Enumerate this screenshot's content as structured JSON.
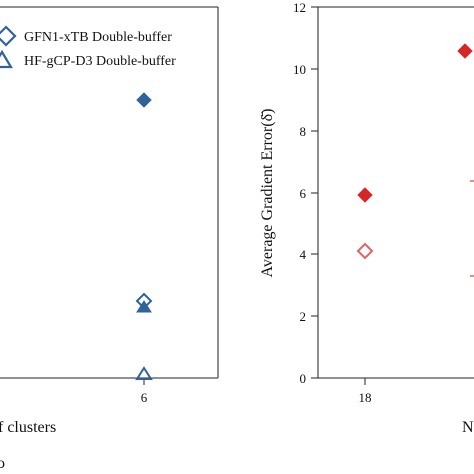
{
  "colors": {
    "blue": "#2f6399",
    "red": "#d62728",
    "red_light": "#e06666",
    "axis": "#222222"
  },
  "left_panel": {
    "x_tick_label": "6",
    "x_axis_label_fragment": "f clusters",
    "panel_letter_fragment": "o",
    "legend": [
      {
        "label": "GFN1-xTB Double-buffer",
        "marker": "diamond-open"
      },
      {
        "label": "HF-gCP-D3 Double-buffer",
        "marker": "triangle-open"
      }
    ]
  },
  "right_panel": {
    "y_axis_label": "Average Gradient Error(δ̄)",
    "x_axis_label_fragment": "N",
    "y_tick_labels": [
      "0",
      "2",
      "4",
      "6",
      "8",
      "10",
      "12"
    ],
    "x_tick_label": "18"
  },
  "chart_data": [
    {
      "type": "scatter",
      "panel": "left",
      "xlabel": "f clusters",
      "x_ticks": [
        "6"
      ],
      "series": [
        {
          "name": "GFN1-xTB Double-buffer",
          "marker": "diamond-open",
          "x": [
            "6"
          ],
          "y_fraction_of_axis": [
            0.272
          ]
        },
        {
          "name": "HF-gCP-D3 Double-buffer",
          "marker": "triangle-open",
          "x": [
            "6"
          ],
          "y_fraction_of_axis": [
            0.003
          ]
        },
        {
          "marker": "diamond-filled",
          "x": [
            "6"
          ],
          "y_fraction_of_axis": [
            0.751
          ]
        },
        {
          "marker": "triangle-filled",
          "x": [
            "6"
          ],
          "y_fraction_of_axis": [
            0.254
          ]
        }
      ],
      "legend_position": "top-left"
    },
    {
      "type": "scatter",
      "panel": "right",
      "ylabel": "Average Gradient Error(δ̄)",
      "ylim": [
        0,
        12
      ],
      "y_ticks": [
        0,
        2,
        4,
        6,
        8,
        10,
        12
      ],
      "x_ticks": [
        "18"
      ],
      "series": [
        {
          "marker": "diamond-filled",
          "color": "#d62728",
          "points": [
            {
              "x": "18",
              "y": 5.9
            },
            {
              "x": "next",
              "y": 10.6
            }
          ]
        },
        {
          "marker": "diamond-open",
          "color": "#e06666",
          "points": [
            {
              "x": "18",
              "y": 3.2
            }
          ]
        },
        {
          "marker": "partial-clipped",
          "color": "#e06666",
          "points": [
            {
              "x": "next",
              "y": 6.4
            },
            {
              "x": "next",
              "y": 3.3
            }
          ]
        }
      ]
    }
  ]
}
